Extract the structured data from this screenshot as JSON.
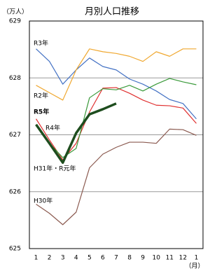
{
  "chart_data": {
    "type": "line",
    "title": "月別人口推移",
    "y_label": "（万人）",
    "x_label": "（月）",
    "categories": [
      "1",
      "2",
      "3",
      "4",
      "5",
      "6",
      "7",
      "8",
      "9",
      "10",
      "11",
      "12",
      "1"
    ],
    "ylim": [
      625,
      629
    ],
    "yticks": [
      625,
      626,
      627,
      628,
      629
    ],
    "grid": true,
    "series": [
      {
        "name": "R3年",
        "color": "#4472c4",
        "values": [
          628.51,
          628.29,
          627.89,
          628.14,
          628.35,
          628.2,
          628.14,
          627.98,
          627.89,
          627.77,
          627.62,
          627.55,
          627.28
        ]
      },
      {
        "name": "R2年",
        "color": "#f0a830",
        "values": [
          627.87,
          627.74,
          627.61,
          628.14,
          628.51,
          628.46,
          628.43,
          628.38,
          628.29,
          628.46,
          628.38,
          628.51,
          628.51
        ]
      },
      {
        "name": "R4年",
        "color": "#e03030",
        "values": [
          627.28,
          626.91,
          626.56,
          626.85,
          627.4,
          627.82,
          627.83,
          627.73,
          627.61,
          627.52,
          627.51,
          627.47,
          627.2
        ]
      },
      {
        "name": "H31年・R元年",
        "color": "#3a9a3a",
        "values": [
          627.18,
          626.85,
          626.6,
          626.76,
          627.65,
          627.81,
          627.79,
          627.87,
          627.77,
          627.89,
          627.99,
          627.93,
          627.88
        ]
      },
      {
        "name": "H30年",
        "color": "#8b5a50",
        "values": [
          625.78,
          625.62,
          625.42,
          625.64,
          626.42,
          626.66,
          626.78,
          626.87,
          626.87,
          626.85,
          627.1,
          627.09,
          626.99
        ]
      },
      {
        "name": "R5年",
        "color": "#1e4d1e",
        "values": [
          627.18,
          626.85,
          626.51,
          627.03,
          627.36,
          627.45,
          627.55,
          null,
          null,
          null,
          null,
          null,
          null
        ]
      }
    ]
  }
}
